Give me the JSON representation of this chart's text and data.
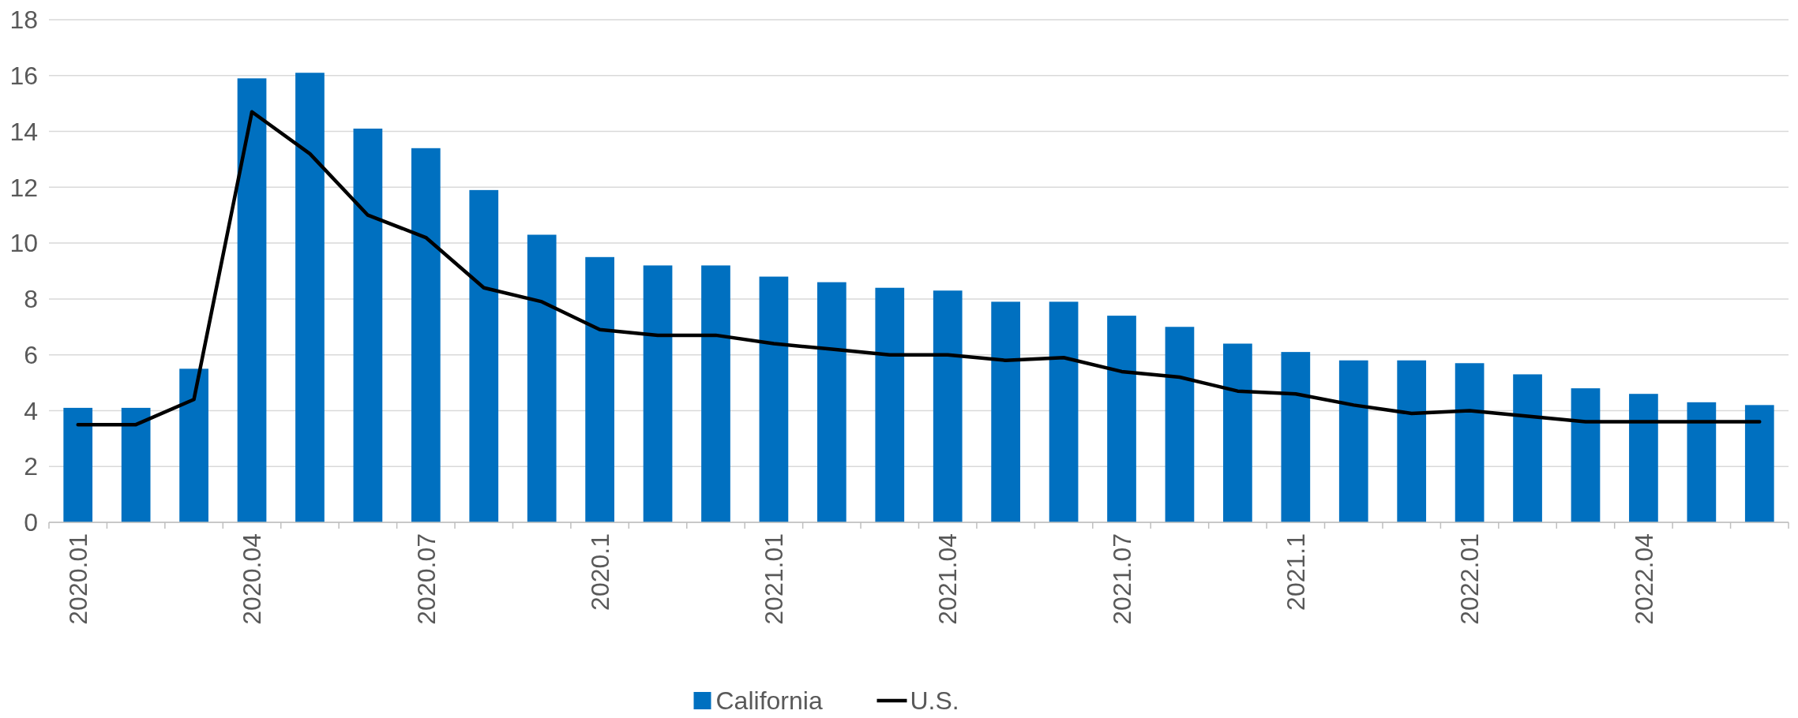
{
  "chart_data": {
    "type": "bar",
    "categories": [
      "2020.01",
      null,
      null,
      "2020.04",
      null,
      null,
      "2020.07",
      null,
      null,
      "2020.1",
      null,
      null,
      "2021.01",
      null,
      null,
      "2021.04",
      null,
      null,
      "2021.07",
      null,
      null,
      "2021.1",
      null,
      null,
      "2022.01",
      null,
      null,
      "2022.04",
      null,
      null
    ],
    "series": [
      {
        "name": "California",
        "color": "#0070c0",
        "values": [
          4.1,
          4.1,
          5.5,
          15.9,
          16.1,
          14.1,
          13.4,
          11.9,
          10.3,
          9.5,
          9.2,
          9.2,
          8.8,
          8.6,
          8.4,
          8.3,
          7.9,
          7.9,
          7.4,
          7.0,
          6.4,
          6.1,
          5.8,
          5.8,
          5.7,
          5.3,
          4.8,
          4.6,
          4.3,
          4.2
        ]
      },
      {
        "name": "U.S.",
        "type": "line",
        "color": "#000000",
        "values": [
          3.5,
          3.5,
          4.4,
          14.7,
          13.2,
          11.0,
          10.2,
          8.4,
          7.9,
          6.9,
          6.7,
          6.7,
          6.4,
          6.2,
          6.0,
          6.0,
          5.8,
          5.9,
          5.4,
          5.2,
          4.7,
          4.6,
          4.2,
          3.9,
          4.0,
          3.8,
          3.6,
          3.6,
          3.6,
          3.6
        ]
      }
    ],
    "ylim": [
      0,
      18
    ],
    "yticks": [
      0,
      2,
      4,
      6,
      8,
      10,
      12,
      14,
      16,
      18
    ],
    "grid": "y",
    "legend": "bottom",
    "line_style": "solid"
  }
}
